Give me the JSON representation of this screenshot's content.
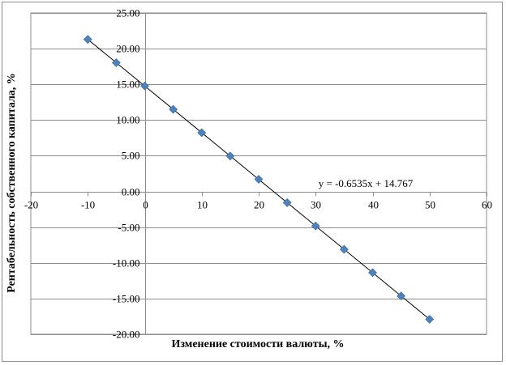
{
  "chart_data": {
    "type": "scatter",
    "xlabel": "Изменение стоимости валюты, %",
    "ylabel": "Рентабельность собственного капитала, %",
    "xlim": [
      -20,
      60
    ],
    "ylim": [
      -20,
      25
    ],
    "x_ticks": [
      "-20",
      "-10",
      "0",
      "10",
      "20",
      "30",
      "40",
      "50",
      "60"
    ],
    "y_ticks": [
      "25.00",
      "20.00",
      "15.00",
      "10.00",
      "5.00",
      "0.00",
      "-5.00",
      "-10.00",
      "-15.00",
      "-20.00"
    ],
    "grid": "horizontal",
    "series": [
      {
        "marker": "diamond",
        "color": "#4f81bd",
        "x": [
          -10,
          -5,
          0,
          5,
          10,
          15,
          20,
          25,
          30,
          35,
          40,
          45,
          50
        ],
        "y": [
          21.3,
          18.03,
          14.77,
          11.5,
          8.23,
          4.96,
          1.7,
          -1.57,
          -4.84,
          -8.11,
          -11.37,
          -14.64,
          -17.91
        ]
      }
    ],
    "trendline": {
      "slope": -0.6535,
      "intercept": 14.767,
      "label": "y = -0.6535x + 14.767",
      "color": "#000000"
    }
  }
}
